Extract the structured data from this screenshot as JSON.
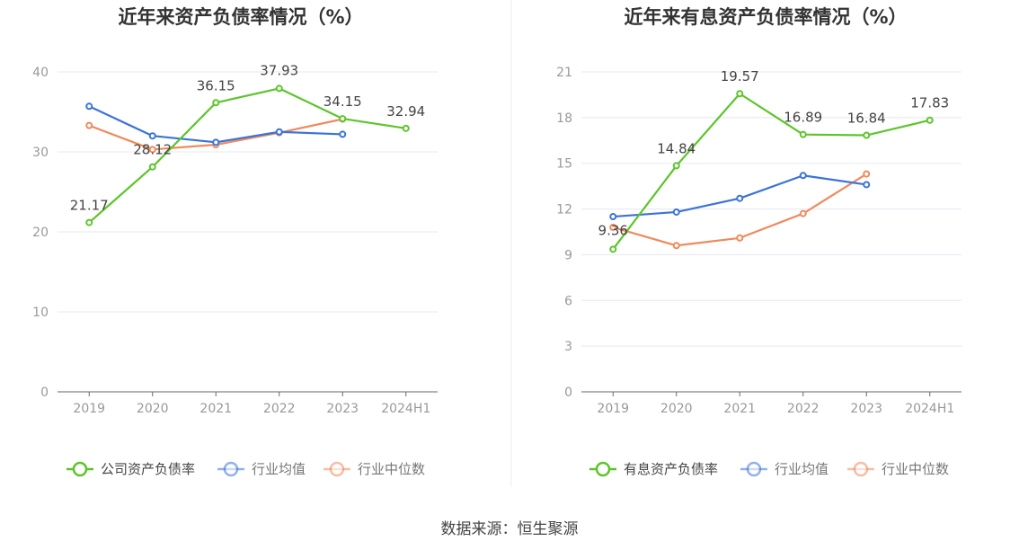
{
  "source": "数据来源：恒生聚源",
  "colors": {
    "green": "#5cc52a",
    "blue": "#3a73d9",
    "orange": "#ef8a5c",
    "grid": "#e5e8ef",
    "axis": "#666666",
    "tick_text": "#999999",
    "label_text": "#444444",
    "title_text": "#333333"
  },
  "chart_data": [
    {
      "type": "line",
      "title": "近年来资产负债率情况（%）",
      "categories": [
        "2019",
        "2020",
        "2021",
        "2022",
        "2023",
        "2024H1"
      ],
      "ylim": [
        0,
        40
      ],
      "yticks": [
        0,
        10,
        20,
        30,
        40
      ],
      "series": [
        {
          "name": "公司资产负债率",
          "color": "green",
          "values": [
            21.17,
            28.12,
            36.15,
            37.93,
            34.15,
            32.94
          ],
          "labels": [
            "21.17",
            "28.12",
            "36.15",
            "37.93",
            "34.15",
            "32.94"
          ]
        },
        {
          "name": "行业均值",
          "color": "blue",
          "values": [
            35.7,
            32.0,
            31.2,
            32.5,
            32.2,
            null
          ]
        },
        {
          "name": "行业中位数",
          "color": "orange",
          "values": [
            33.3,
            30.3,
            30.9,
            32.4,
            34.1,
            null
          ]
        }
      ]
    },
    {
      "type": "line",
      "title": "近年来有息资产负债率情况（%）",
      "categories": [
        "2019",
        "2020",
        "2021",
        "2022",
        "2023",
        "2024H1"
      ],
      "ylim": [
        0,
        21
      ],
      "yticks": [
        0,
        3,
        6,
        9,
        12,
        15,
        18,
        21
      ],
      "series": [
        {
          "name": "有息资产负债率",
          "color": "green",
          "values": [
            9.36,
            14.84,
            19.57,
            16.89,
            16.84,
            17.83
          ],
          "labels": [
            "9.36",
            "14.84",
            "19.57",
            "16.89",
            "16.84",
            "17.83"
          ]
        },
        {
          "name": "行业均值",
          "color": "blue",
          "values": [
            11.5,
            11.8,
            12.7,
            14.2,
            13.6,
            null
          ]
        },
        {
          "name": "行业中位数",
          "color": "orange",
          "values": [
            10.8,
            9.6,
            10.1,
            11.7,
            14.3,
            null
          ]
        }
      ]
    }
  ]
}
